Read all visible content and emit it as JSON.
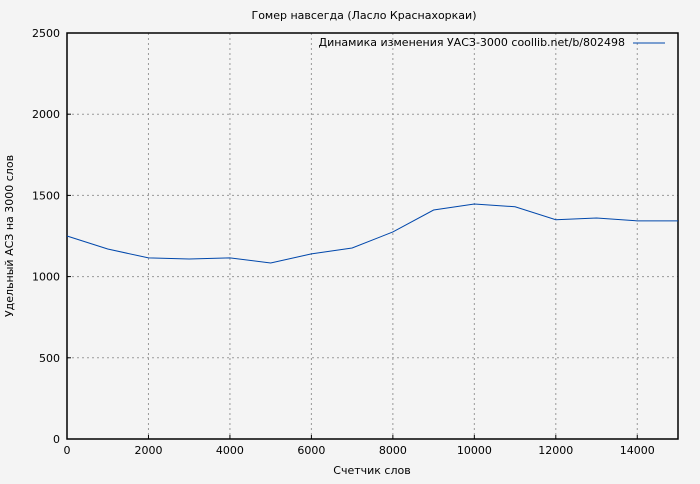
{
  "chart_data": {
    "type": "line",
    "title": "Гомер навсегда (Ласло Краснахоркаи)",
    "xlabel": "Счетчик слов",
    "ylabel": "Удельный АСЗ на 3000 слов",
    "xlim": [
      0,
      15000
    ],
    "ylim": [
      0,
      2500
    ],
    "xticks": [
      0,
      2000,
      4000,
      6000,
      8000,
      10000,
      12000,
      14000
    ],
    "yticks": [
      0,
      500,
      1000,
      1500,
      2000,
      2500
    ],
    "grid": true,
    "legend_position": "top-right",
    "series": [
      {
        "name": "Динамика изменения УАСЗ-3000 coollib.net/b/802498",
        "color": "#0047ab",
        "x": [
          0,
          1000,
          2000,
          3000,
          4000,
          5000,
          6000,
          7000,
          8000,
          9000,
          10000,
          11000,
          12000,
          13000,
          14000,
          15000
        ],
        "y": [
          1250,
          1170,
          1115,
          1108,
          1115,
          1084,
          1140,
          1176,
          1275,
          1410,
          1447,
          1430,
          1350,
          1361,
          1343,
          1343
        ]
      }
    ]
  }
}
